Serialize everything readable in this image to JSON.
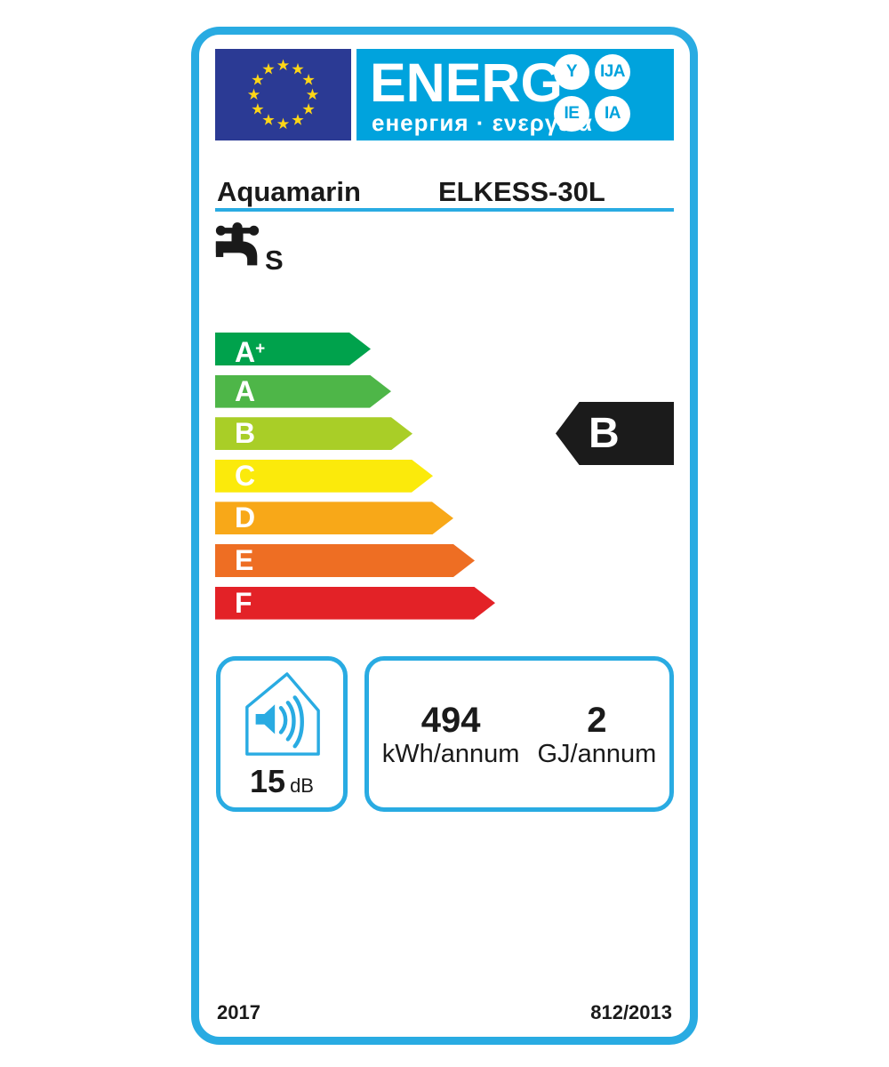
{
  "label": {
    "colors": {
      "accent": "#29ABE2",
      "band": "#00A3DD",
      "flag_blue": "#2B3A94",
      "star_yellow": "#FFD617",
      "ink": "#1A1A1A"
    },
    "header": {
      "title": "ENERG",
      "subtitle": "енергия · ενεργεια",
      "suffix_bubbles": [
        "Y",
        "IJA",
        "IE",
        "IA"
      ]
    },
    "supplier": {
      "brand": "Aquamarin",
      "model": "ELKESS-30L"
    },
    "function": {
      "icon": "water-tap",
      "load_profile": "S"
    },
    "rating_scale": [
      {
        "grade": "A",
        "sup": "+",
        "color": "#00A24C"
      },
      {
        "grade": "A",
        "color": "#4EB648"
      },
      {
        "grade": "B",
        "color": "#A9CE27"
      },
      {
        "grade": "C",
        "color": "#FBEA0B"
      },
      {
        "grade": "D",
        "color": "#F8A818"
      },
      {
        "grade": "E",
        "color": "#EE6E23"
      },
      {
        "grade": "F",
        "color": "#E32227"
      }
    ],
    "rating": {
      "grade": "B",
      "color": "#1B1B1B"
    },
    "noise": {
      "value": "15",
      "unit": "dB"
    },
    "energy": {
      "electric": {
        "value": "494",
        "unit": "kWh/annum"
      },
      "fuel": {
        "value": "2",
        "unit": "GJ/annum"
      }
    },
    "footer": {
      "year": "2017",
      "regulation": "812/2013"
    }
  }
}
